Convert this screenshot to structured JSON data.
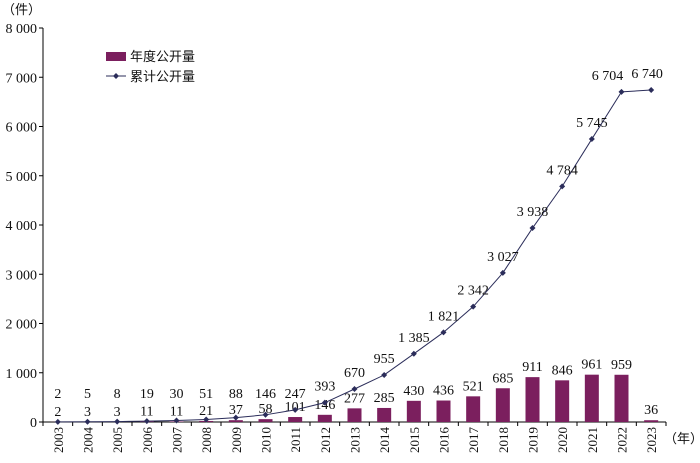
{
  "chart_data": {
    "type": "bar+line",
    "ylabel": "（件）",
    "xlabel": "（年）",
    "ylim": [
      0,
      8000
    ],
    "yticks": [
      0,
      1000,
      2000,
      3000,
      4000,
      5000,
      6000,
      7000,
      8000
    ],
    "ytick_labels": [
      "0",
      "1 000",
      "2 000",
      "3 000",
      "4 000",
      "5 000",
      "6 000",
      "7 000",
      "8 000"
    ],
    "categories": [
      "2003",
      "2004",
      "2005",
      "2006",
      "2007",
      "2008",
      "2009",
      "2010",
      "2011",
      "2012",
      "2013",
      "2014",
      "2015",
      "2016",
      "2017",
      "2018",
      "2019",
      "2020",
      "2021",
      "2022",
      "2023"
    ],
    "series": [
      {
        "name": "年度公开量",
        "type": "bar",
        "color": "#7b1f5e",
        "values": [
          2,
          3,
          3,
          11,
          11,
          21,
          37,
          58,
          101,
          146,
          277,
          285,
          430,
          436,
          521,
          685,
          911,
          846,
          961,
          959,
          36
        ]
      },
      {
        "name": "累计公开量",
        "type": "line",
        "color": "#2b2d5a",
        "values": [
          2,
          5,
          8,
          19,
          30,
          51,
          88,
          146,
          247,
          393,
          670,
          955,
          1385,
          1821,
          2342,
          3027,
          3938,
          4784,
          5745,
          6704,
          6740
        ]
      }
    ],
    "legend_position": "top-left",
    "grid": false
  }
}
